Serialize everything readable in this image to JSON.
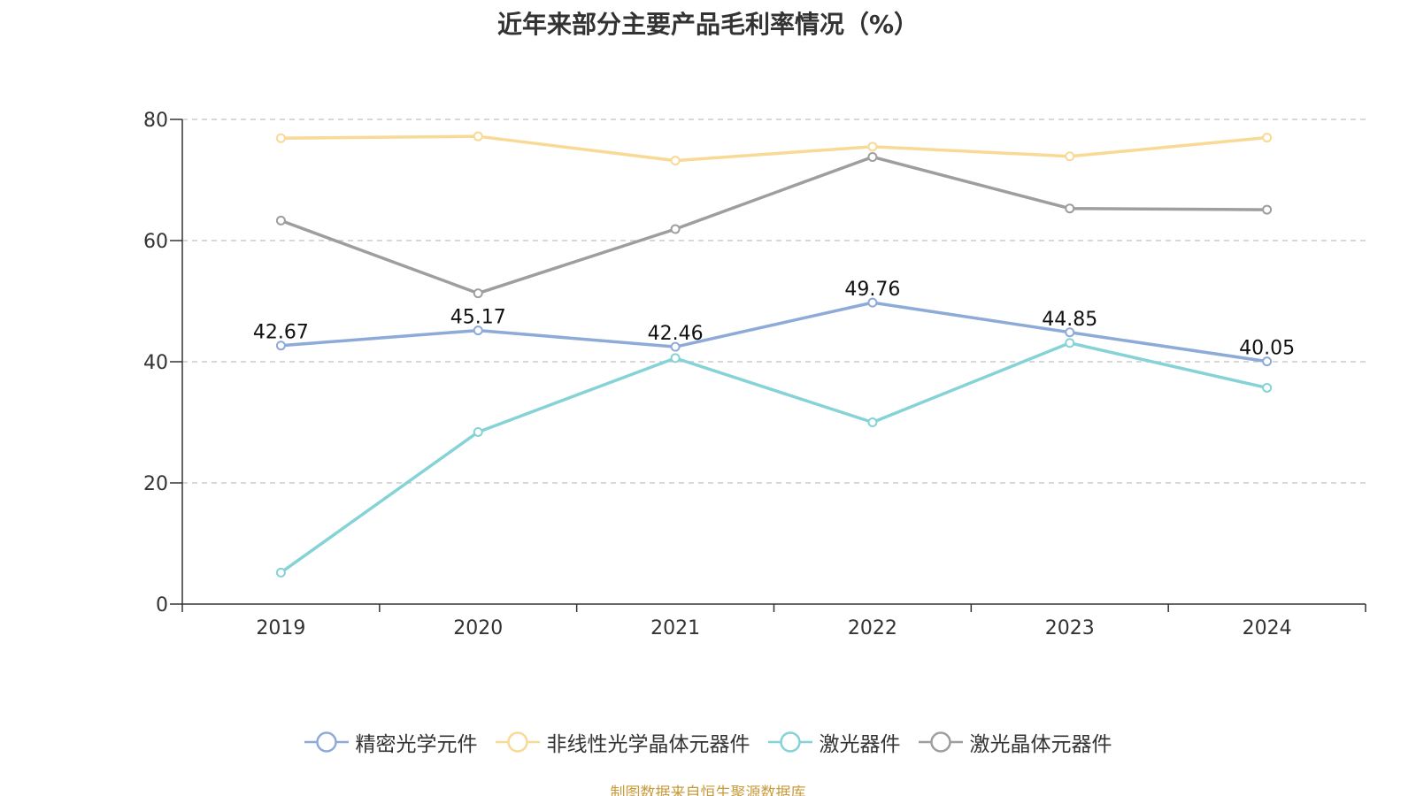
{
  "title": "近年来部分主要产品毛利率情况（%）",
  "source": "制图数据来自恒生聚源数据库",
  "chart_data": {
    "type": "line",
    "title": "近年来部分主要产品毛利率情况（%）",
    "categories": [
      "2019",
      "2020",
      "2021",
      "2022",
      "2023",
      "2024"
    ],
    "ylim": [
      0,
      80
    ],
    "yticks": [
      0,
      20,
      40,
      60,
      80
    ],
    "grid": true,
    "legend_position": "bottom",
    "series": [
      {
        "name": "精密光学元件",
        "color": "#8eaad8",
        "values": [
          42.67,
          45.17,
          42.46,
          49.76,
          44.85,
          40.05
        ],
        "labels": [
          "42.67",
          "45.17",
          "42.46",
          "49.76",
          "44.85",
          "40.05"
        ]
      },
      {
        "name": "非线性光学晶体元器件",
        "color": "#f9d996",
        "values": [
          76.9,
          77.2,
          73.2,
          75.5,
          73.9,
          77.0
        ]
      },
      {
        "name": "激光器件",
        "color": "#85d3d6",
        "values": [
          5.2,
          28.4,
          40.6,
          30.0,
          43.1,
          35.7
        ]
      },
      {
        "name": "激光晶体元器件",
        "color": "#9e9e9e",
        "values": [
          63.3,
          51.3,
          61.9,
          73.8,
          65.3,
          65.1
        ]
      }
    ]
  }
}
